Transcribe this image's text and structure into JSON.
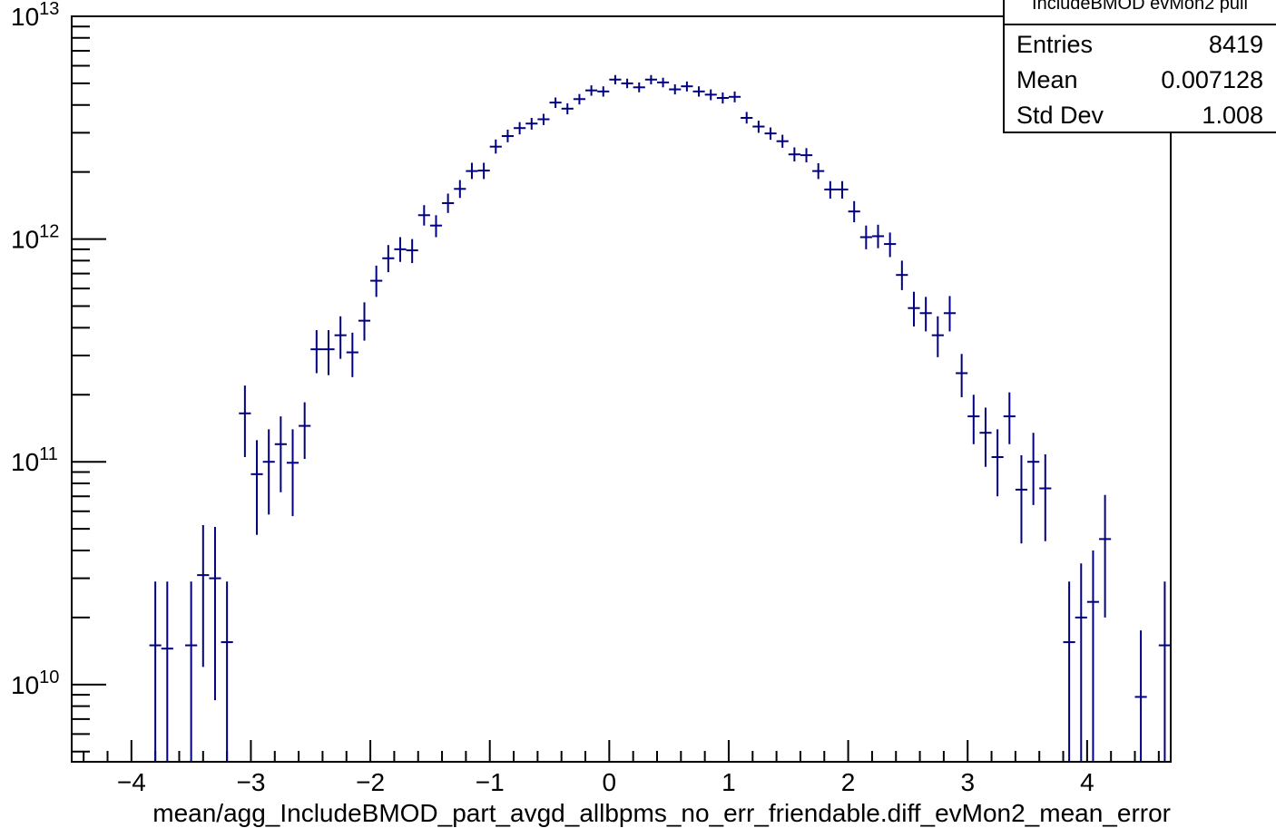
{
  "chart_data": {
    "type": "scatter",
    "title": "",
    "xlabel": "mean/agg_IncludeBMOD_part_avgd_allbpms_no_err_friendable.diff_evMon2_mean_error",
    "ylabel": "",
    "xlim": [
      -4.5,
      4.7
    ],
    "ylim": [
      4500000000.0,
      10000000000000.0
    ],
    "y_scale": "log",
    "grid": false,
    "marker_color": "#000080",
    "x_ticks": [
      "−4",
      "−3",
      "−2",
      "−1",
      "0",
      "1",
      "2",
      "3",
      "4"
    ],
    "x_tick_values": [
      -4,
      -3,
      -2,
      -1,
      0,
      1,
      2,
      3,
      4
    ],
    "y_ticks": [
      {
        "value": 10000000000000.0,
        "mant": "10",
        "exp": "13"
      },
      {
        "value": 1000000000000.0,
        "mant": "10",
        "exp": "12"
      },
      {
        "value": 100000000000.0,
        "mant": "10",
        "exp": "11"
      },
      {
        "value": 10000000000.0,
        "mant": "10",
        "exp": "10"
      }
    ],
    "bin_half_width": 0.05,
    "stats": {
      "title": "IncludeBMOD evMon2 pull",
      "rows": [
        {
          "label": "Entries",
          "value": "8419"
        },
        {
          "label": "Mean",
          "value": "0.007128"
        },
        {
          "label": "Std Dev",
          "value": "1.008"
        }
      ]
    },
    "points": [
      [
        -3.8,
        15000000000.0,
        0,
        29000000000.0
      ],
      [
        -3.7,
        14500000000.0,
        0,
        29000000000.0
      ],
      [
        -3.5,
        15000000000.0,
        0,
        29000000000.0
      ],
      [
        -3.4,
        31000000000.0,
        12000000000.0,
        52000000000.0
      ],
      [
        -3.3,
        30000000000.0,
        8500000000.0,
        51000000000.0
      ],
      [
        -3.2,
        15500000000.0,
        0,
        29000000000.0
      ],
      [
        -3.05,
        165000000000.0,
        105000000000.0,
        220000000000.0
      ],
      [
        -2.95,
        88000000000.0,
        47000000000.0,
        125000000000.0
      ],
      [
        -2.85,
        100000000000.0,
        58000000000.0,
        140000000000.0
      ],
      [
        -2.75,
        120000000000.0,
        73000000000.0,
        160000000000.0
      ],
      [
        -2.65,
        99000000000.0,
        57000000000.0,
        140000000000.0
      ],
      [
        -2.55,
        145000000000.0,
        103000000000.0,
        185000000000.0
      ],
      [
        -2.45,
        320000000000.0,
        250000000000.0,
        390000000000.0
      ],
      [
        -2.35,
        320000000000.0,
        245000000000.0,
        390000000000.0
      ],
      [
        -2.25,
        370000000000.0,
        290000000000.0,
        450000000000.0
      ],
      [
        -2.15,
        310000000000.0,
        240000000000.0,
        380000000000.0
      ],
      [
        -2.05,
        430000000000.0,
        350000000000.0,
        520000000000.0
      ],
      [
        -1.95,
        650000000000.0,
        550000000000.0,
        760000000000.0
      ],
      [
        -1.85,
        820000000000.0,
        710000000000.0,
        940000000000.0
      ],
      [
        -1.75,
        900000000000.0,
        790000000000.0,
        1020000000000.0
      ],
      [
        -1.65,
        890000000000.0,
        780000000000.0,
        1000000000000.0
      ],
      [
        -1.55,
        1280000000000.0,
        1150000000000.0,
        1420000000000.0
      ],
      [
        -1.45,
        1150000000000.0,
        1020000000000.0,
        1280000000000.0
      ],
      [
        -1.35,
        1450000000000.0,
        1310000000000.0,
        1600000000000.0
      ],
      [
        -1.25,
        1680000000000.0,
        1530000000000.0,
        1840000000000.0
      ],
      [
        -1.15,
        2020000000000.0,
        1860000000000.0,
        2200000000000.0
      ],
      [
        -1.05,
        2030000000000.0,
        1860000000000.0,
        2200000000000.0
      ],
      [
        -0.95,
        2600000000000.0,
        2420000000000.0,
        2800000000000.0
      ],
      [
        -0.85,
        2900000000000.0,
        2720000000000.0,
        3100000000000.0
      ],
      [
        -0.75,
        3150000000000.0,
        2950000000000.0,
        3350000000000.0
      ],
      [
        -0.65,
        3300000000000.0,
        3100000000000.0,
        3500000000000.0
      ],
      [
        -0.55,
        3450000000000.0,
        3250000000000.0,
        3650000000000.0
      ],
      [
        -0.45,
        4100000000000.0,
        3880000000000.0,
        4320000000000.0
      ],
      [
        -0.35,
        3850000000000.0,
        3630000000000.0,
        4070000000000.0
      ],
      [
        -0.25,
        4250000000000.0,
        4020000000000.0,
        4480000000000.0
      ],
      [
        -0.15,
        4650000000000.0,
        4400000000000.0,
        4900000000000.0
      ],
      [
        -0.05,
        4600000000000.0,
        4360000000000.0,
        4850000000000.0
      ],
      [
        0.05,
        5200000000000.0,
        4950000000000.0,
        5450000000000.0
      ],
      [
        0.15,
        5000000000000.0,
        4760000000000.0,
        5250000000000.0
      ],
      [
        0.25,
        4800000000000.0,
        4560000000000.0,
        5050000000000.0
      ],
      [
        0.35,
        5200000000000.0,
        4950000000000.0,
        5450000000000.0
      ],
      [
        0.45,
        5050000000000.0,
        4800000000000.0,
        5300000000000.0
      ],
      [
        0.55,
        4700000000000.0,
        4460000000000.0,
        4950000000000.0
      ],
      [
        0.65,
        4850000000000.0,
        4600000000000.0,
        5100000000000.0
      ],
      [
        0.75,
        4600000000000.0,
        4360000000000.0,
        4850000000000.0
      ],
      [
        0.85,
        4450000000000.0,
        4200000000000.0,
        4700000000000.0
      ],
      [
        0.95,
        4300000000000.0,
        4060000000000.0,
        4550000000000.0
      ],
      [
        1.05,
        4350000000000.0,
        4110000000000.0,
        4600000000000.0
      ],
      [
        1.15,
        3500000000000.0,
        3300000000000.0,
        3720000000000.0
      ],
      [
        1.25,
        3200000000000.0,
        3000000000000.0,
        3400000000000.0
      ],
      [
        1.35,
        2980000000000.0,
        2790000000000.0,
        3170000000000.0
      ],
      [
        1.45,
        2750000000000.0,
        2570000000000.0,
        2940000000000.0
      ],
      [
        1.55,
        2400000000000.0,
        2230000000000.0,
        2580000000000.0
      ],
      [
        1.65,
        2380000000000.0,
        2210000000000.0,
        2560000000000.0
      ],
      [
        1.75,
        2020000000000.0,
        1860000000000.0,
        2190000000000.0
      ],
      [
        1.85,
        1670000000000.0,
        1520000000000.0,
        1820000000000.0
      ],
      [
        1.95,
        1670000000000.0,
        1520000000000.0,
        1820000000000.0
      ],
      [
        2.05,
        1330000000000.0,
        1190000000000.0,
        1480000000000.0
      ],
      [
        2.15,
        1020000000000.0,
        900000000000.0,
        1150000000000.0
      ],
      [
        2.25,
        1030000000000.0,
        910000000000.0,
        1160000000000.0
      ],
      [
        2.35,
        950000000000.0,
        830000000000.0,
        1070000000000.0
      ],
      [
        2.45,
        690000000000.0,
        590000000000.0,
        800000000000.0
      ],
      [
        2.55,
        490000000000.0,
        405000000000.0,
        580000000000.0
      ],
      [
        2.65,
        465000000000.0,
        385000000000.0,
        550000000000.0
      ],
      [
        2.75,
        370000000000.0,
        295000000000.0,
        450000000000.0
      ],
      [
        2.85,
        465000000000.0,
        385000000000.0,
        555000000000.0
      ],
      [
        2.95,
        250000000000.0,
        195000000000.0,
        305000000000.0
      ],
      [
        3.05,
        160000000000.0,
        120000000000.0,
        200000000000.0
      ],
      [
        3.15,
        135000000000.0,
        95000000000.0,
        175000000000.0
      ],
      [
        3.25,
        105000000000.0,
        70000000000.0,
        140000000000.0
      ],
      [
        3.35,
        160000000000.0,
        120000000000.0,
        205000000000.0
      ],
      [
        3.45,
        75000000000.0,
        43000000000.0,
        107000000000.0
      ],
      [
        3.55,
        100000000000.0,
        64000000000.0,
        135000000000.0
      ],
      [
        3.65,
        76000000000.0,
        44000000000.0,
        108000000000.0
      ],
      [
        3.85,
        15500000000.0,
        0,
        29000000000.0
      ],
      [
        3.95,
        20000000000.0,
        0,
        35000000000.0
      ],
      [
        4.05,
        23500000000.0,
        0,
        40000000000.0
      ],
      [
        4.15,
        45000000000.0,
        20000000000.0,
        71000000000.0
      ],
      [
        4.45,
        8800000000.0,
        0,
        17500000000.0
      ],
      [
        4.65,
        15000000000.0,
        0,
        29000000000.0
      ]
    ]
  }
}
